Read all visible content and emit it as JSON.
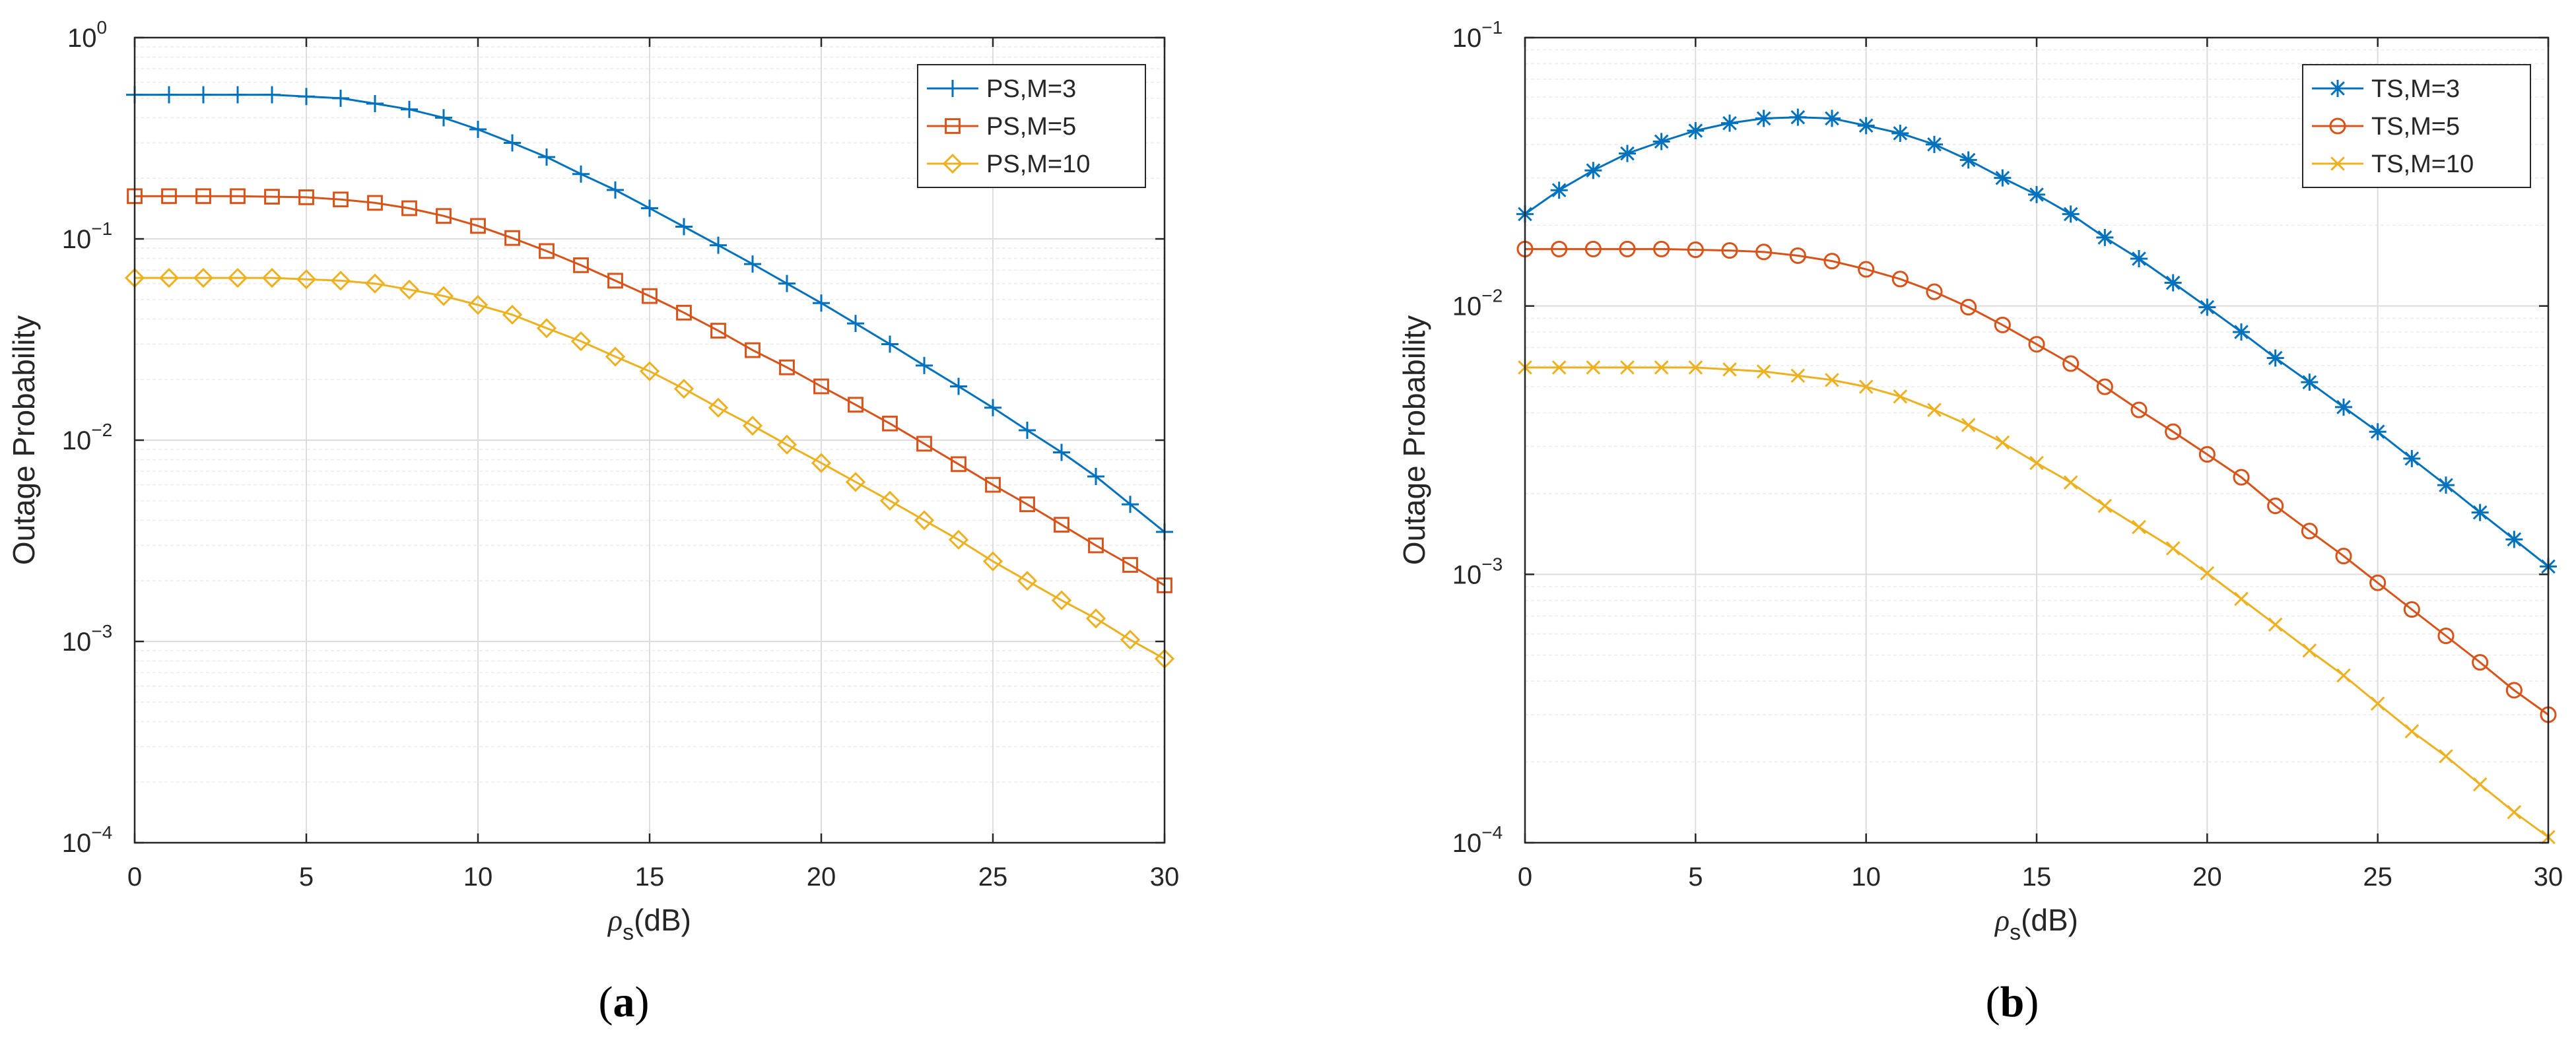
{
  "chart_data": [
    {
      "type": "line",
      "panel_label": "(a)",
      "title": "",
      "xlabel_symbol": "ρ",
      "xlabel_sub": "s",
      "xlabel_unit": "(dB)",
      "ylabel": "Outage Probability",
      "xlim": [
        0,
        30
      ],
      "ylim": [
        0.0001,
        1
      ],
      "yscale": "log",
      "grid": true,
      "legend_position": "top-right",
      "x_ticks": [
        0,
        5,
        10,
        15,
        20,
        25,
        30
      ],
      "x_tick_labels": [
        "0",
        "5",
        "10",
        "15",
        "20",
        "25",
        "30"
      ],
      "y_ticks": [
        {
          "value": 1,
          "base": "10",
          "exp": "0"
        },
        {
          "value": 0.1,
          "base": "10",
          "exp": "−1"
        },
        {
          "value": 0.01,
          "base": "10",
          "exp": "−2"
        },
        {
          "value": 0.001,
          "base": "10",
          "exp": "−3"
        },
        {
          "value": 0.0001,
          "base": "10",
          "exp": "−4"
        }
      ],
      "x": [
        0,
        1,
        2,
        3,
        4,
        5,
        6,
        7,
        8,
        9,
        10,
        11,
        12,
        13,
        14,
        15,
        16,
        17,
        18,
        19,
        20,
        21,
        22,
        23,
        24,
        25,
        26,
        27,
        28,
        29,
        30
      ],
      "series": [
        {
          "name": "PS,M=3",
          "color": "#0072BD",
          "marker": "plus",
          "values": [
            0.52,
            0.52,
            0.52,
            0.52,
            0.52,
            0.51,
            0.5,
            0.47,
            0.44,
            0.4,
            0.35,
            0.3,
            0.255,
            0.21,
            0.175,
            0.142,
            0.115,
            0.093,
            0.075,
            0.06,
            0.048,
            0.038,
            0.03,
            0.0235,
            0.0185,
            0.0145,
            0.0112,
            0.0087,
            0.0066,
            0.0048,
            0.0035
          ]
        },
        {
          "name": "PS,M=5",
          "color": "#D95319",
          "marker": "square",
          "values": [
            0.163,
            0.163,
            0.163,
            0.163,
            0.162,
            0.161,
            0.157,
            0.151,
            0.142,
            0.13,
            0.116,
            0.101,
            0.087,
            0.074,
            0.062,
            0.052,
            0.043,
            0.035,
            0.028,
            0.023,
            0.0185,
            0.015,
            0.0121,
            0.0096,
            0.0076,
            0.006,
            0.0048,
            0.0038,
            0.003,
            0.0024,
            0.0019
          ]
        },
        {
          "name": "PS,M=10",
          "color": "#EDB120",
          "marker": "diamond",
          "values": [
            0.064,
            0.064,
            0.064,
            0.064,
            0.064,
            0.063,
            0.062,
            0.06,
            0.056,
            0.052,
            0.047,
            0.042,
            0.036,
            0.031,
            0.026,
            0.022,
            0.018,
            0.0145,
            0.0118,
            0.0095,
            0.0077,
            0.0062,
            0.005,
            0.004,
            0.0032,
            0.0025,
            0.002,
            0.0016,
            0.0013,
            0.00102,
            0.00082
          ]
        }
      ]
    },
    {
      "type": "line",
      "panel_label": "(b)",
      "title": "",
      "xlabel_symbol": "ρ",
      "xlabel_sub": "s",
      "xlabel_unit": "(dB)",
      "ylabel": "Outage Probability",
      "xlim": [
        0,
        30
      ],
      "ylim": [
        0.0001,
        0.1
      ],
      "yscale": "log",
      "grid": true,
      "legend_position": "top-right",
      "x_ticks": [
        0,
        5,
        10,
        15,
        20,
        25,
        30
      ],
      "x_tick_labels": [
        "0",
        "5",
        "10",
        "15",
        "20",
        "25",
        "30"
      ],
      "y_ticks": [
        {
          "value": 0.1,
          "base": "10",
          "exp": "−1"
        },
        {
          "value": 0.01,
          "base": "10",
          "exp": "−2"
        },
        {
          "value": 0.001,
          "base": "10",
          "exp": "−3"
        },
        {
          "value": 0.0001,
          "base": "10",
          "exp": "−4"
        }
      ],
      "x": [
        0,
        1,
        2,
        3,
        4,
        5,
        6,
        7,
        8,
        9,
        10,
        11,
        12,
        13,
        14,
        15,
        16,
        17,
        18,
        19,
        20,
        21,
        22,
        23,
        24,
        25,
        26,
        27,
        28,
        29,
        30
      ],
      "series": [
        {
          "name": "TS,M=3",
          "color": "#0072BD",
          "marker": "asterisk",
          "values": [
            0.022,
            0.027,
            0.032,
            0.037,
            0.041,
            0.045,
            0.048,
            0.05,
            0.0505,
            0.05,
            0.047,
            0.044,
            0.04,
            0.035,
            0.03,
            0.026,
            0.022,
            0.018,
            0.015,
            0.0122,
            0.0099,
            0.008,
            0.0064,
            0.0052,
            0.0042,
            0.0034,
            0.0027,
            0.00215,
            0.0017,
            0.00135,
            0.00107
          ]
        },
        {
          "name": "TS,M=5",
          "color": "#D95319",
          "marker": "circle",
          "values": [
            0.0163,
            0.0163,
            0.0163,
            0.0163,
            0.0163,
            0.0162,
            0.0161,
            0.0159,
            0.0154,
            0.0147,
            0.0137,
            0.0126,
            0.0113,
            0.0099,
            0.0085,
            0.0072,
            0.0061,
            0.005,
            0.0041,
            0.0034,
            0.0028,
            0.0023,
            0.0018,
            0.00145,
            0.00117,
            0.00093,
            0.00074,
            0.00059,
            0.00047,
            0.00037,
            0.0003
          ]
        },
        {
          "name": "TS,M=10",
          "color": "#EDB120",
          "marker": "x",
          "values": [
            0.0059,
            0.0059,
            0.0059,
            0.0059,
            0.0059,
            0.0059,
            0.0058,
            0.0057,
            0.0055,
            0.0053,
            0.005,
            0.0046,
            0.0041,
            0.0036,
            0.0031,
            0.0026,
            0.0022,
            0.0018,
            0.0015,
            0.00125,
            0.00101,
            0.00081,
            0.00065,
            0.00052,
            0.00042,
            0.00033,
            0.00026,
            0.00021,
            0.000165,
            0.00013,
            0.000105
          ]
        }
      ]
    }
  ]
}
